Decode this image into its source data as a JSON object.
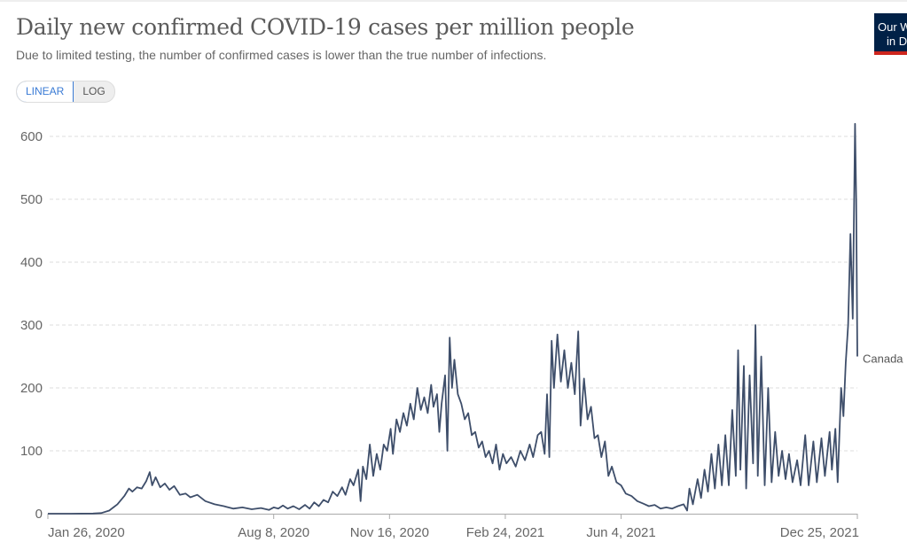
{
  "header": {
    "title": "Daily new confirmed COVID-19 cases per million people",
    "subtitle": "Due to limited testing, the number of confirmed cases is lower than the true number of infections.",
    "logo_line1": "Our World",
    "logo_line2": "in Data"
  },
  "controls": {
    "linear_label": "LINEAR",
    "log_label": "LOG",
    "selected": "LINEAR"
  },
  "colors": {
    "series": "#3e4e6a",
    "accent": "#3a7bd5",
    "logo_bg": "#002147",
    "logo_stripe": "#ce261e"
  },
  "chart_data": {
    "type": "line",
    "title": "Daily new confirmed COVID-19 cases per million people",
    "xlabel": "",
    "ylabel": "",
    "ylim": [
      0,
      620
    ],
    "xlim": [
      "2020-01-26",
      "2021-12-25"
    ],
    "grid": "horizontal dashed",
    "y_ticks": [
      "0",
      "100",
      "200",
      "300",
      "400",
      "500",
      "600"
    ],
    "x_ticks": [
      {
        "date": "2020-01-26",
        "label": "Jan 26, 2020"
      },
      {
        "date": "2020-08-08",
        "label": "Aug 8, 2020"
      },
      {
        "date": "2020-11-16",
        "label": "Nov 16, 2020"
      },
      {
        "date": "2021-02-24",
        "label": "Feb 24, 2021"
      },
      {
        "date": "2021-06-04",
        "label": "Jun 4, 2021"
      },
      {
        "date": "2021-12-25",
        "label": "Dec 25, 2021"
      }
    ],
    "series": [
      {
        "name": "Canada",
        "color": "#3e4e6a",
        "points": [
          [
            "2020-01-26",
            0
          ],
          [
            "2020-02-15",
            0
          ],
          [
            "2020-03-05",
            0.3
          ],
          [
            "2020-03-12",
            1
          ],
          [
            "2020-03-19",
            5
          ],
          [
            "2020-03-26",
            15
          ],
          [
            "2020-04-01",
            28
          ],
          [
            "2020-04-05",
            40
          ],
          [
            "2020-04-08",
            35
          ],
          [
            "2020-04-12",
            42
          ],
          [
            "2020-04-16",
            40
          ],
          [
            "2020-04-20",
            52
          ],
          [
            "2020-04-23",
            66
          ],
          [
            "2020-04-25",
            45
          ],
          [
            "2020-04-28",
            58
          ],
          [
            "2020-05-02",
            42
          ],
          [
            "2020-05-06",
            48
          ],
          [
            "2020-05-10",
            38
          ],
          [
            "2020-05-14",
            44
          ],
          [
            "2020-05-19",
            30
          ],
          [
            "2020-05-24",
            32
          ],
          [
            "2020-05-28",
            26
          ],
          [
            "2020-06-03",
            30
          ],
          [
            "2020-06-10",
            20
          ],
          [
            "2020-06-18",
            15
          ],
          [
            "2020-06-26",
            12
          ],
          [
            "2020-07-04",
            8
          ],
          [
            "2020-07-12",
            10
          ],
          [
            "2020-07-20",
            7
          ],
          [
            "2020-07-28",
            9
          ],
          [
            "2020-08-04",
            6
          ],
          [
            "2020-08-08",
            10
          ],
          [
            "2020-08-12",
            8
          ],
          [
            "2020-08-16",
            13
          ],
          [
            "2020-08-20",
            8
          ],
          [
            "2020-08-25",
            12
          ],
          [
            "2020-08-30",
            7
          ],
          [
            "2020-09-04",
            14
          ],
          [
            "2020-09-08",
            8
          ],
          [
            "2020-09-12",
            18
          ],
          [
            "2020-09-16",
            12
          ],
          [
            "2020-09-20",
            22
          ],
          [
            "2020-09-24",
            18
          ],
          [
            "2020-09-28",
            35
          ],
          [
            "2020-10-02",
            28
          ],
          [
            "2020-10-06",
            42
          ],
          [
            "2020-10-09",
            30
          ],
          [
            "2020-10-13",
            55
          ],
          [
            "2020-10-16",
            45
          ],
          [
            "2020-10-20",
            70
          ],
          [
            "2020-10-22",
            20
          ],
          [
            "2020-10-24",
            75
          ],
          [
            "2020-10-27",
            55
          ],
          [
            "2020-10-30",
            110
          ],
          [
            "2020-11-02",
            60
          ],
          [
            "2020-11-05",
            95
          ],
          [
            "2020-11-08",
            70
          ],
          [
            "2020-11-11",
            110
          ],
          [
            "2020-11-14",
            100
          ],
          [
            "2020-11-17",
            135
          ],
          [
            "2020-11-19",
            95
          ],
          [
            "2020-11-22",
            150
          ],
          [
            "2020-11-25",
            130
          ],
          [
            "2020-11-28",
            160
          ],
          [
            "2020-12-01",
            140
          ],
          [
            "2020-12-04",
            175
          ],
          [
            "2020-12-07",
            150
          ],
          [
            "2020-12-10",
            200
          ],
          [
            "2020-12-13",
            165
          ],
          [
            "2020-12-16",
            185
          ],
          [
            "2020-12-19",
            160
          ],
          [
            "2020-12-22",
            205
          ],
          [
            "2020-12-24",
            170
          ],
          [
            "2020-12-27",
            190
          ],
          [
            "2020-12-29",
            130
          ],
          [
            "2020-12-31",
            175
          ],
          [
            "2021-01-03",
            220
          ],
          [
            "2021-01-05",
            100
          ],
          [
            "2021-01-07",
            280
          ],
          [
            "2021-01-09",
            200
          ],
          [
            "2021-01-11",
            245
          ],
          [
            "2021-01-14",
            190
          ],
          [
            "2021-01-17",
            175
          ],
          [
            "2021-01-20",
            150
          ],
          [
            "2021-01-23",
            160
          ],
          [
            "2021-01-26",
            125
          ],
          [
            "2021-01-29",
            130
          ],
          [
            "2021-02-01",
            105
          ],
          [
            "2021-02-04",
            115
          ],
          [
            "2021-02-07",
            90
          ],
          [
            "2021-02-10",
            100
          ],
          [
            "2021-02-13",
            80
          ],
          [
            "2021-02-16",
            110
          ],
          [
            "2021-02-19",
            70
          ],
          [
            "2021-02-22",
            95
          ],
          [
            "2021-02-25",
            80
          ],
          [
            "2021-03-01",
            90
          ],
          [
            "2021-03-05",
            75
          ],
          [
            "2021-03-09",
            100
          ],
          [
            "2021-03-13",
            85
          ],
          [
            "2021-03-17",
            110
          ],
          [
            "2021-03-20",
            90
          ],
          [
            "2021-03-24",
            125
          ],
          [
            "2021-03-27",
            130
          ],
          [
            "2021-03-30",
            95
          ],
          [
            "2021-04-01",
            190
          ],
          [
            "2021-04-03",
            90
          ],
          [
            "2021-04-05",
            275
          ],
          [
            "2021-04-07",
            200
          ],
          [
            "2021-04-10",
            285
          ],
          [
            "2021-04-13",
            210
          ],
          [
            "2021-04-16",
            260
          ],
          [
            "2021-04-19",
            200
          ],
          [
            "2021-04-22",
            240
          ],
          [
            "2021-04-25",
            190
          ],
          [
            "2021-04-28",
            290
          ],
          [
            "2021-04-30",
            140
          ],
          [
            "2021-05-03",
            215
          ],
          [
            "2021-05-06",
            150
          ],
          [
            "2021-05-09",
            170
          ],
          [
            "2021-05-12",
            120
          ],
          [
            "2021-05-15",
            125
          ],
          [
            "2021-05-18",
            90
          ],
          [
            "2021-05-21",
            115
          ],
          [
            "2021-05-24",
            60
          ],
          [
            "2021-05-27",
            75
          ],
          [
            "2021-05-31",
            50
          ],
          [
            "2021-06-04",
            45
          ],
          [
            "2021-06-08",
            32
          ],
          [
            "2021-06-13",
            28
          ],
          [
            "2021-06-18",
            20
          ],
          [
            "2021-06-23",
            16
          ],
          [
            "2021-06-28",
            12
          ],
          [
            "2021-07-03",
            14
          ],
          [
            "2021-07-08",
            8
          ],
          [
            "2021-07-13",
            10
          ],
          [
            "2021-07-18",
            8
          ],
          [
            "2021-07-23",
            12
          ],
          [
            "2021-07-28",
            15
          ],
          [
            "2021-07-31",
            5
          ],
          [
            "2021-08-02",
            40
          ],
          [
            "2021-08-05",
            15
          ],
          [
            "2021-08-09",
            55
          ],
          [
            "2021-08-12",
            25
          ],
          [
            "2021-08-15",
            70
          ],
          [
            "2021-08-18",
            35
          ],
          [
            "2021-08-21",
            95
          ],
          [
            "2021-08-24",
            40
          ],
          [
            "2021-08-27",
            110
          ],
          [
            "2021-08-30",
            45
          ],
          [
            "2021-09-02",
            125
          ],
          [
            "2021-09-05",
            45
          ],
          [
            "2021-09-08",
            165
          ],
          [
            "2021-09-11",
            60
          ],
          [
            "2021-09-13",
            260
          ],
          [
            "2021-09-15",
            70
          ],
          [
            "2021-09-18",
            235
          ],
          [
            "2021-09-20",
            40
          ],
          [
            "2021-09-23",
            220
          ],
          [
            "2021-09-26",
            80
          ],
          [
            "2021-09-28",
            300
          ],
          [
            "2021-09-30",
            60
          ],
          [
            "2021-10-03",
            250
          ],
          [
            "2021-10-06",
            45
          ],
          [
            "2021-10-09",
            200
          ],
          [
            "2021-10-12",
            50
          ],
          [
            "2021-10-15",
            130
          ],
          [
            "2021-10-18",
            60
          ],
          [
            "2021-10-21",
            100
          ],
          [
            "2021-10-24",
            55
          ],
          [
            "2021-10-27",
            95
          ],
          [
            "2021-10-30",
            50
          ],
          [
            "2021-11-03",
            85
          ],
          [
            "2021-11-06",
            45
          ],
          [
            "2021-11-10",
            125
          ],
          [
            "2021-11-13",
            45
          ],
          [
            "2021-11-17",
            115
          ],
          [
            "2021-11-20",
            50
          ],
          [
            "2021-11-24",
            120
          ],
          [
            "2021-11-27",
            60
          ],
          [
            "2021-12-01",
            130
          ],
          [
            "2021-12-03",
            70
          ],
          [
            "2021-12-06",
            135
          ],
          [
            "2021-12-08",
            50
          ],
          [
            "2021-12-11",
            200
          ],
          [
            "2021-12-13",
            155
          ],
          [
            "2021-12-15",
            240
          ],
          [
            "2021-12-17",
            300
          ],
          [
            "2021-12-19",
            445
          ],
          [
            "2021-12-21",
            310
          ],
          [
            "2021-12-23",
            620
          ],
          [
            "2021-12-24",
            500
          ],
          [
            "2021-12-25",
            250
          ]
        ]
      }
    ]
  }
}
